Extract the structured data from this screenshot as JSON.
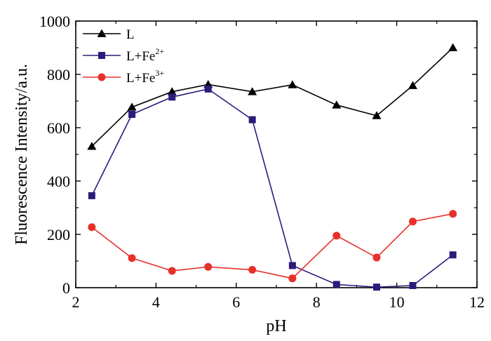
{
  "chart_data": {
    "type": "line",
    "xlabel": "pH",
    "ylabel": "Fluorescence Intensity/a.u.",
    "xlim": [
      2,
      12
    ],
    "ylim": [
      0,
      1000
    ],
    "xticks": [
      2,
      4,
      6,
      8,
      10,
      12
    ],
    "yticks": [
      0,
      200,
      400,
      600,
      800,
      1000
    ],
    "grid": false,
    "legend_position": "top-left",
    "series": [
      {
        "name": "L",
        "name_base": "L",
        "name_sup": "",
        "color": "#000000",
        "marker": "triangle",
        "x": [
          2.4,
          3.4,
          4.4,
          5.3,
          6.4,
          7.4,
          8.5,
          9.5,
          10.4,
          11.4
        ],
        "y": [
          530,
          677,
          735,
          762,
          735,
          761,
          685,
          645,
          758,
          900
        ]
      },
      {
        "name": "L+Fe2+",
        "name_base": "L+Fe",
        "name_sup": "2+",
        "color": "#2e1a7a",
        "marker": "square",
        "x": [
          2.4,
          3.4,
          4.4,
          5.3,
          6.4,
          7.4,
          8.5,
          9.5,
          10.4,
          11.4
        ],
        "y": [
          345,
          650,
          715,
          745,
          630,
          83,
          12,
          2,
          8,
          123
        ]
      },
      {
        "name": "L+Fe3+",
        "name_base": "L+Fe",
        "name_sup": "3+",
        "color": "#e8302a",
        "marker": "circle",
        "x": [
          2.4,
          3.4,
          4.4,
          5.3,
          6.4,
          7.4,
          8.5,
          9.5,
          10.4,
          11.4
        ],
        "y": [
          227,
          111,
          63,
          78,
          67,
          35,
          195,
          113,
          248,
          277
        ]
      }
    ]
  }
}
